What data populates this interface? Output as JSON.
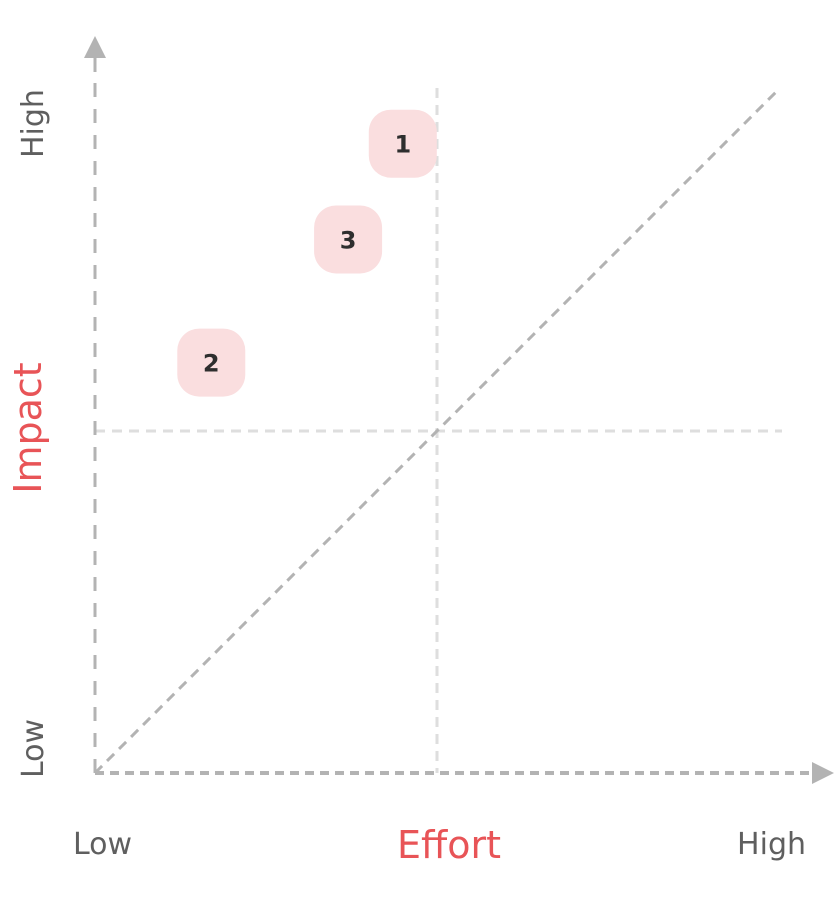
{
  "chart_data": {
    "type": "scatter",
    "title": "",
    "xlabel": "Effort",
    "ylabel": "Impact",
    "x_ticks": [
      "Low",
      "High"
    ],
    "y_ticks": [
      "Low",
      "High"
    ],
    "xlim": [
      0,
      1
    ],
    "ylim": [
      0,
      1
    ],
    "grid": false,
    "quadrant_dividers": {
      "x": 0.5,
      "y": 0.5
    },
    "diagonal_reference_line": true,
    "points": [
      {
        "label": "1",
        "x": 0.45,
        "y": 0.92
      },
      {
        "label": "2",
        "x": 0.17,
        "y": 0.6
      },
      {
        "label": "3",
        "x": 0.37,
        "y": 0.78
      }
    ],
    "colors": {
      "axis": "#b3b3b3",
      "divider": "#dedede",
      "axis_title": "#e85457",
      "tick_label": "#5f5f5f",
      "badge_fill": "#fadedf",
      "badge_text": "#2e2e2e"
    }
  }
}
